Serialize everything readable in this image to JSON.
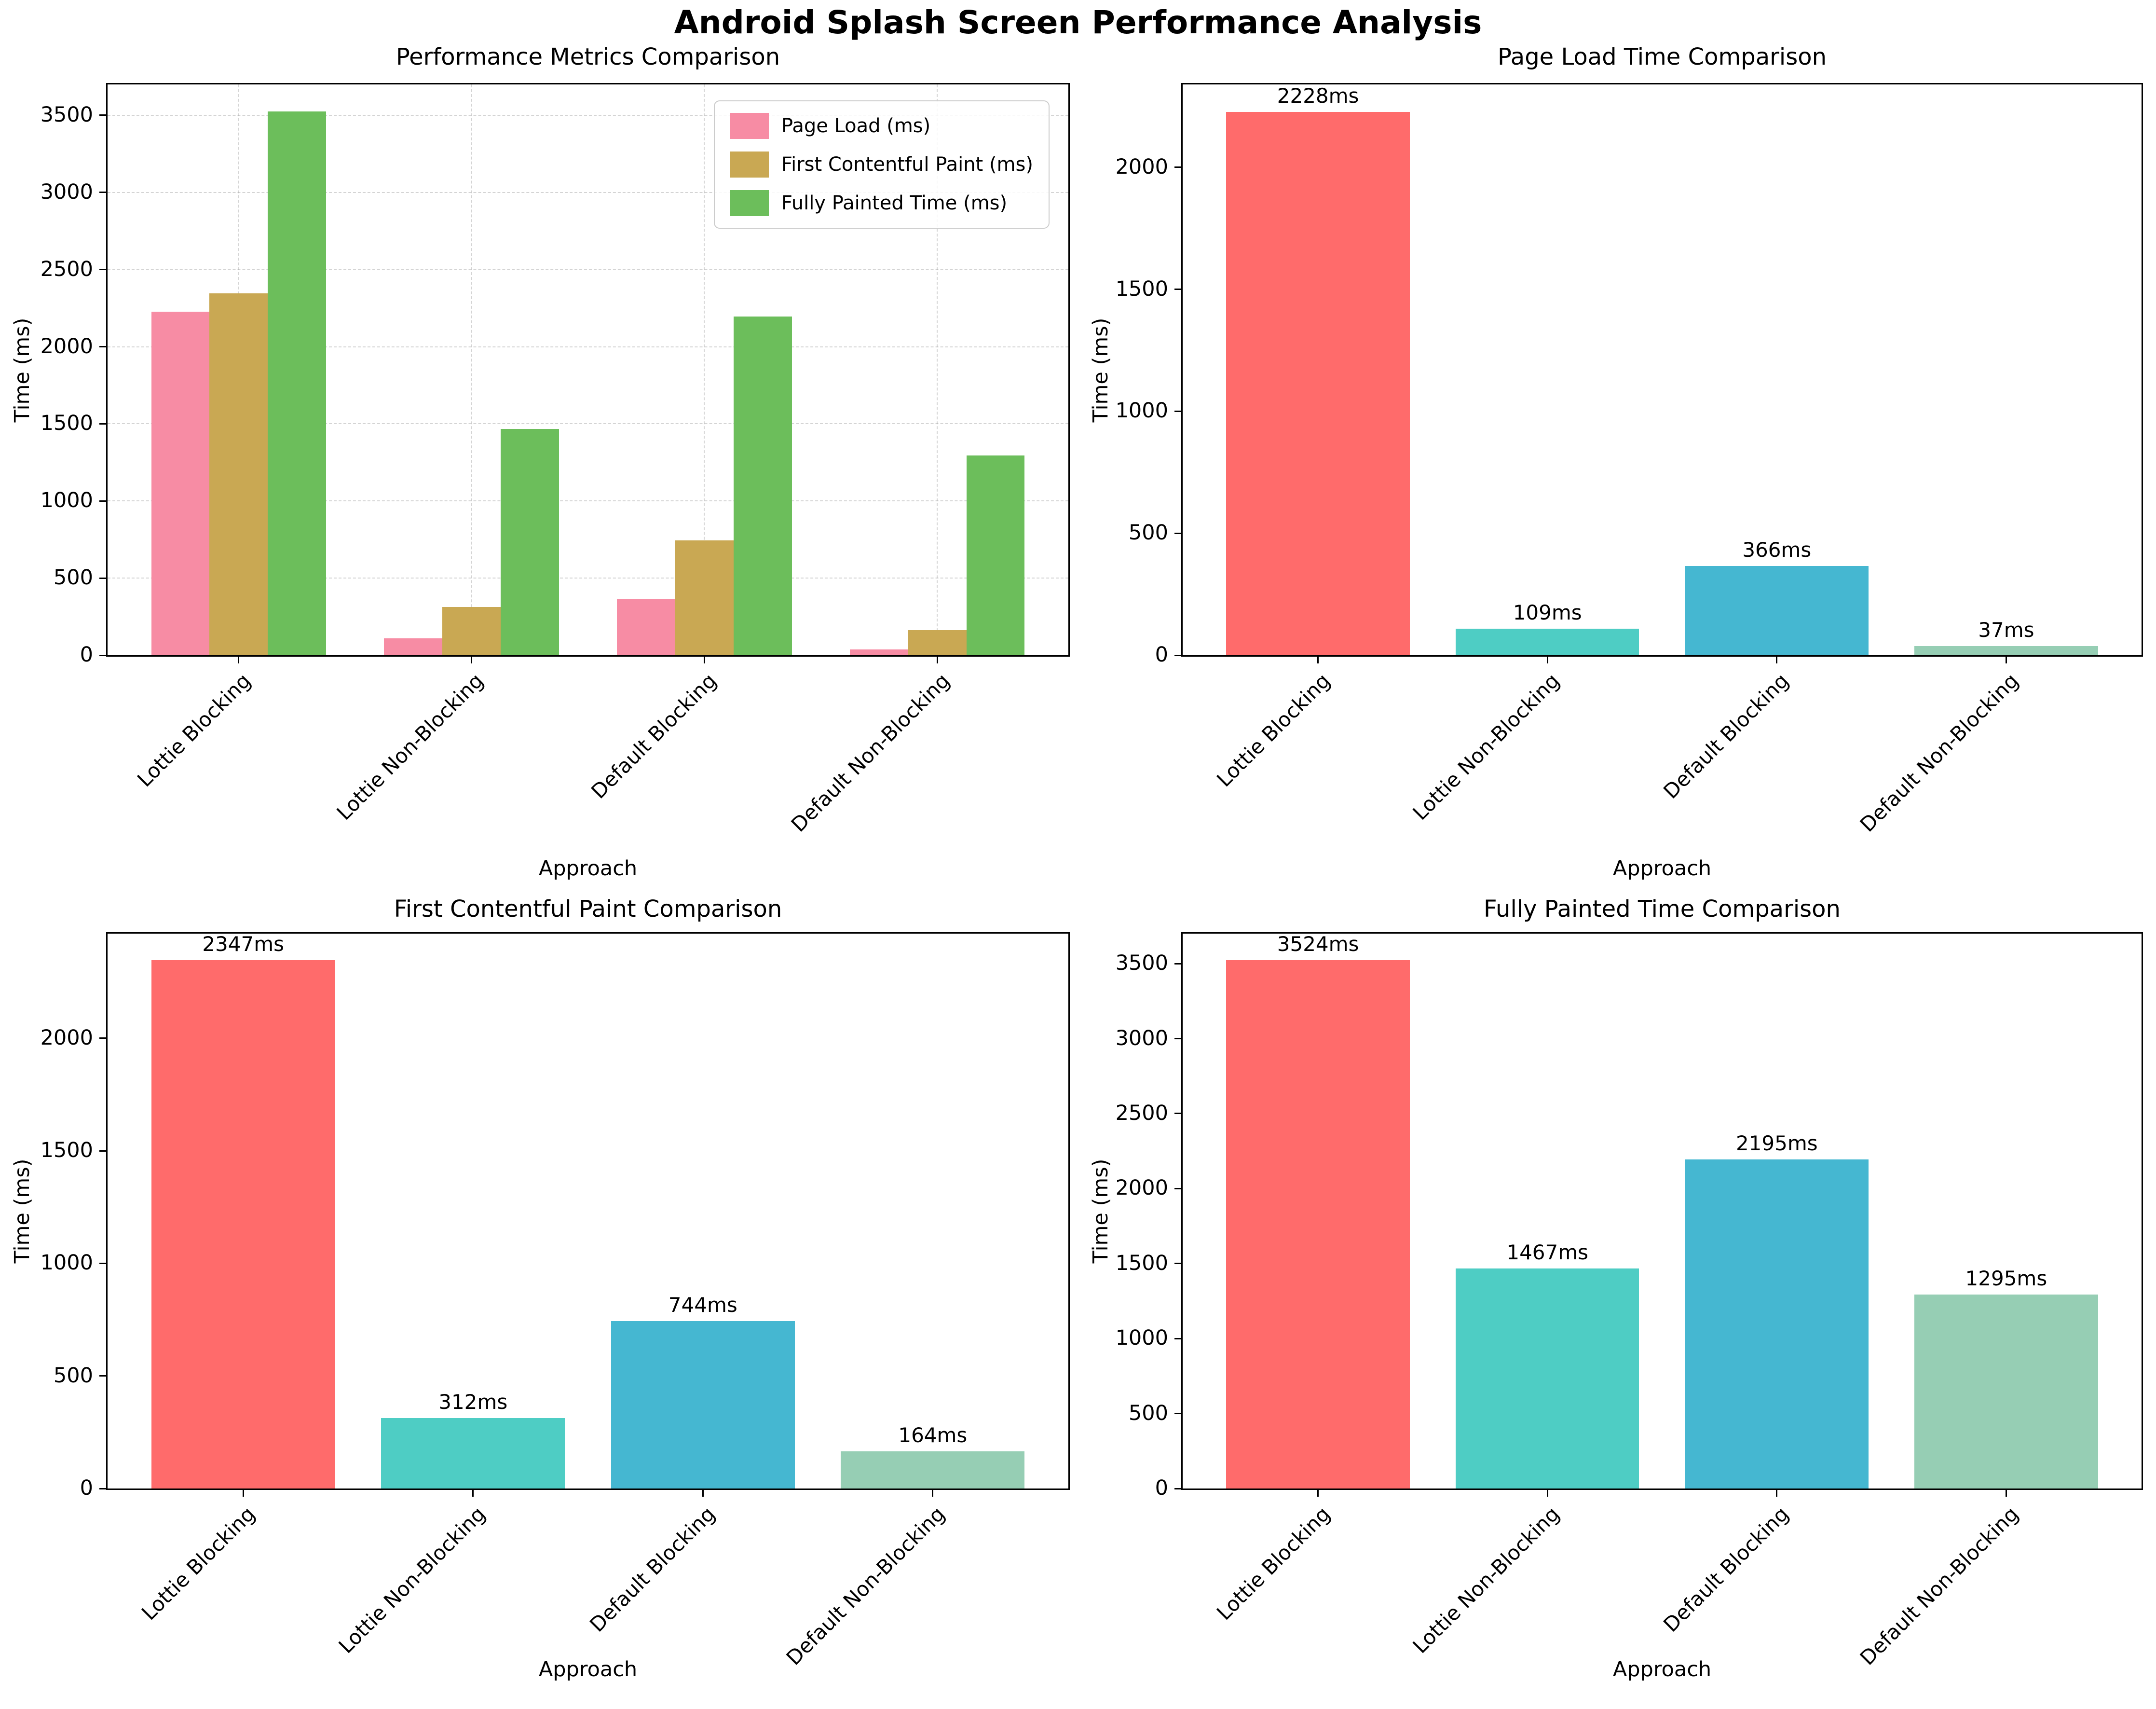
{
  "title": "Android Splash Screen Performance Analysis",
  "xlabel": "Approach",
  "ylabel": "Time (ms)",
  "categories": [
    "Lottie Blocking",
    "Lottie Non-Blocking",
    "Default Blocking",
    "Default Non-Blocking"
  ],
  "colors": {
    "grouped_page_load": "#f78ca4",
    "grouped_fcp": "#c9a853",
    "grouped_fully_painted": "#6cbe5b",
    "single_palette": [
      "#ff6b6b",
      "#4ecdc4",
      "#45b7d1",
      "#96ceb4"
    ],
    "axis": "#000000",
    "grid": "#aaaaaa"
  },
  "chart_data": [
    {
      "type": "bar",
      "title": "Performance Metrics Comparison",
      "xlabel": "Approach",
      "ylabel": "Time (ms)",
      "categories": [
        "Lottie Blocking",
        "Lottie Non-Blocking",
        "Default Blocking",
        "Default Non-Blocking"
      ],
      "series": [
        {
          "name": "Page Load (ms)",
          "color": "#f78ca4",
          "values": [
            2228,
            109,
            366,
            37
          ]
        },
        {
          "name": "First Contentful Paint (ms)",
          "color": "#c9a853",
          "values": [
            2347,
            312,
            744,
            164
          ]
        },
        {
          "name": "Fully Painted Time (ms)",
          "color": "#6cbe5b",
          "values": [
            3524,
            1467,
            2195,
            1295
          ]
        }
      ],
      "ylim": [
        0,
        3700
      ],
      "ytick_step": 500,
      "yticks": [
        0,
        500,
        1000,
        1500,
        2000,
        2500,
        3000,
        3500
      ],
      "grid": true,
      "legend": true,
      "legend_position": "upper right"
    },
    {
      "type": "bar",
      "title": "Page Load Time Comparison",
      "xlabel": "Approach",
      "ylabel": "Time (ms)",
      "categories": [
        "Lottie Blocking",
        "Lottie Non-Blocking",
        "Default Blocking",
        "Default Non-Blocking"
      ],
      "values": [
        2228,
        109,
        366,
        37
      ],
      "bar_labels": [
        "2228ms",
        "109ms",
        "366ms",
        "37ms"
      ],
      "bar_colors": [
        "#ff6b6b",
        "#4ecdc4",
        "#45b7d1",
        "#96ceb4"
      ],
      "ylim": [
        0,
        2340
      ],
      "ytick_step": 500,
      "yticks": [
        0,
        500,
        1000,
        1500,
        2000
      ],
      "grid": false,
      "legend": false
    },
    {
      "type": "bar",
      "title": "First Contentful Paint Comparison",
      "xlabel": "Approach",
      "ylabel": "Time (ms)",
      "categories": [
        "Lottie Blocking",
        "Lottie Non-Blocking",
        "Default Blocking",
        "Default Non-Blocking"
      ],
      "values": [
        2347,
        312,
        744,
        164
      ],
      "bar_labels": [
        "2347ms",
        "312ms",
        "744ms",
        "164ms"
      ],
      "bar_colors": [
        "#ff6b6b",
        "#4ecdc4",
        "#45b7d1",
        "#96ceb4"
      ],
      "ylim": [
        0,
        2465
      ],
      "ytick_step": 500,
      "yticks": [
        0,
        500,
        1000,
        1500,
        2000
      ],
      "grid": false,
      "legend": false
    },
    {
      "type": "bar",
      "title": "Fully Painted Time Comparison",
      "xlabel": "Approach",
      "ylabel": "Time (ms)",
      "categories": [
        "Lottie Blocking",
        "Lottie Non-Blocking",
        "Default Blocking",
        "Default Non-Blocking"
      ],
      "values": [
        3524,
        1467,
        2195,
        1295
      ],
      "bar_labels": [
        "3524ms",
        "1467ms",
        "2195ms",
        "1295ms"
      ],
      "bar_colors": [
        "#ff6b6b",
        "#4ecdc4",
        "#45b7d1",
        "#96ceb4"
      ],
      "ylim": [
        0,
        3700
      ],
      "ytick_step": 500,
      "yticks": [
        0,
        500,
        1000,
        1500,
        2000,
        2500,
        3000,
        3500
      ],
      "grid": false,
      "legend": false
    }
  ]
}
